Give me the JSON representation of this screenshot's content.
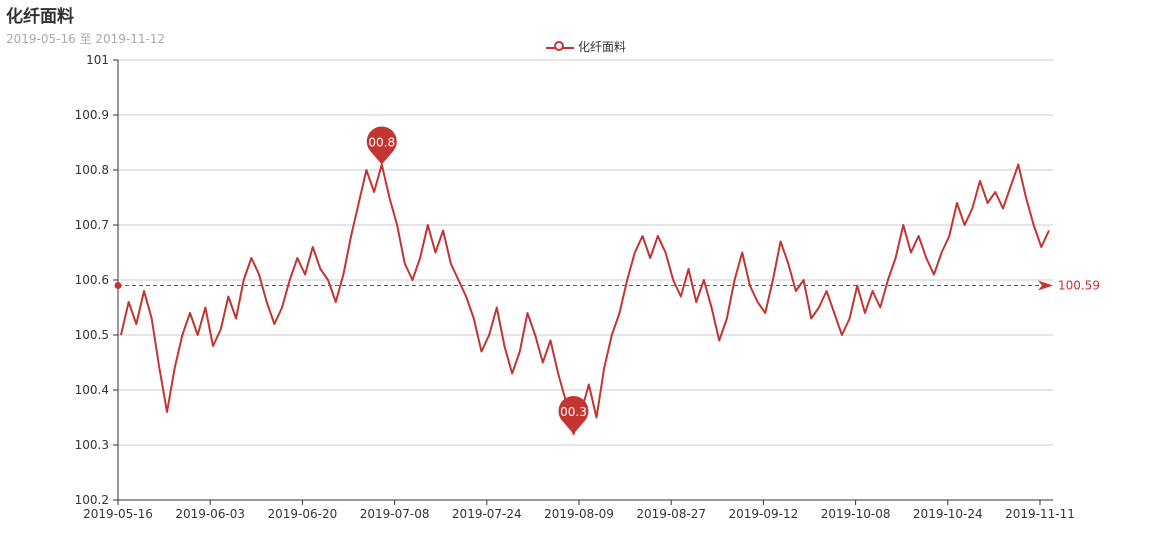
{
  "chart_data": {
    "type": "line",
    "title": "化纤面料",
    "subtitle": "2019-05-16 至 2019-11-12",
    "xlabel": "",
    "ylabel": "",
    "ylim": [
      100.2,
      101
    ],
    "yticks": [
      "100.2",
      "100.3",
      "100.4",
      "100.5",
      "100.6",
      "100.7",
      "100.8",
      "100.9",
      "101"
    ],
    "x_tick_labels": [
      "2019-05-16",
      "2019-06-03",
      "2019-06-20",
      "2019-07-08",
      "2019-07-24",
      "2019-08-09",
      "2019-08-27",
      "2019-09-12",
      "2019-10-08",
      "2019-10-24",
      "2019-11-11"
    ],
    "grid": true,
    "legend_position": "top-center",
    "color": "#c23531",
    "series": [
      {
        "name": "化纤面料",
        "values": [
          100.5,
          100.56,
          100.52,
          100.58,
          100.53,
          100.44,
          100.36,
          100.44,
          100.5,
          100.54,
          100.5,
          100.55,
          100.48,
          100.51,
          100.57,
          100.53,
          100.6,
          100.64,
          100.61,
          100.56,
          100.52,
          100.55,
          100.6,
          100.64,
          100.61,
          100.66,
          100.62,
          100.6,
          100.56,
          100.61,
          100.68,
          100.74,
          100.8,
          100.76,
          100.81,
          100.75,
          100.7,
          100.63,
          100.6,
          100.64,
          100.7,
          100.65,
          100.69,
          100.63,
          100.6,
          100.57,
          100.53,
          100.47,
          100.5,
          100.55,
          100.48,
          100.43,
          100.47,
          100.54,
          100.5,
          100.45,
          100.49,
          100.43,
          100.38,
          100.32,
          100.36,
          100.41,
          100.35,
          100.44,
          100.5,
          100.54,
          100.6,
          100.65,
          100.68,
          100.64,
          100.68,
          100.65,
          100.6,
          100.57,
          100.62,
          100.56,
          100.6,
          100.55,
          100.49,
          100.53,
          100.6,
          100.65,
          100.59,
          100.56,
          100.54,
          100.6,
          100.67,
          100.63,
          100.58,
          100.6,
          100.53,
          100.55,
          100.58,
          100.54,
          100.5,
          100.53,
          100.59,
          100.54,
          100.58,
          100.55,
          100.6,
          100.64,
          100.7,
          100.65,
          100.68,
          100.64,
          100.61,
          100.65,
          100.68,
          100.74,
          100.7,
          100.73,
          100.78,
          100.74,
          100.76,
          100.73,
          100.77,
          100.81,
          100.75,
          100.7,
          100.66,
          100.69
        ]
      }
    ],
    "markers": {
      "max": {
        "label": "100.81",
        "value": 100.81,
        "index": 34
      },
      "min": {
        "label": "100.32",
        "value": 100.32,
        "index": 59
      }
    },
    "average_line": {
      "label": "100.59",
      "value": 100.59
    }
  }
}
